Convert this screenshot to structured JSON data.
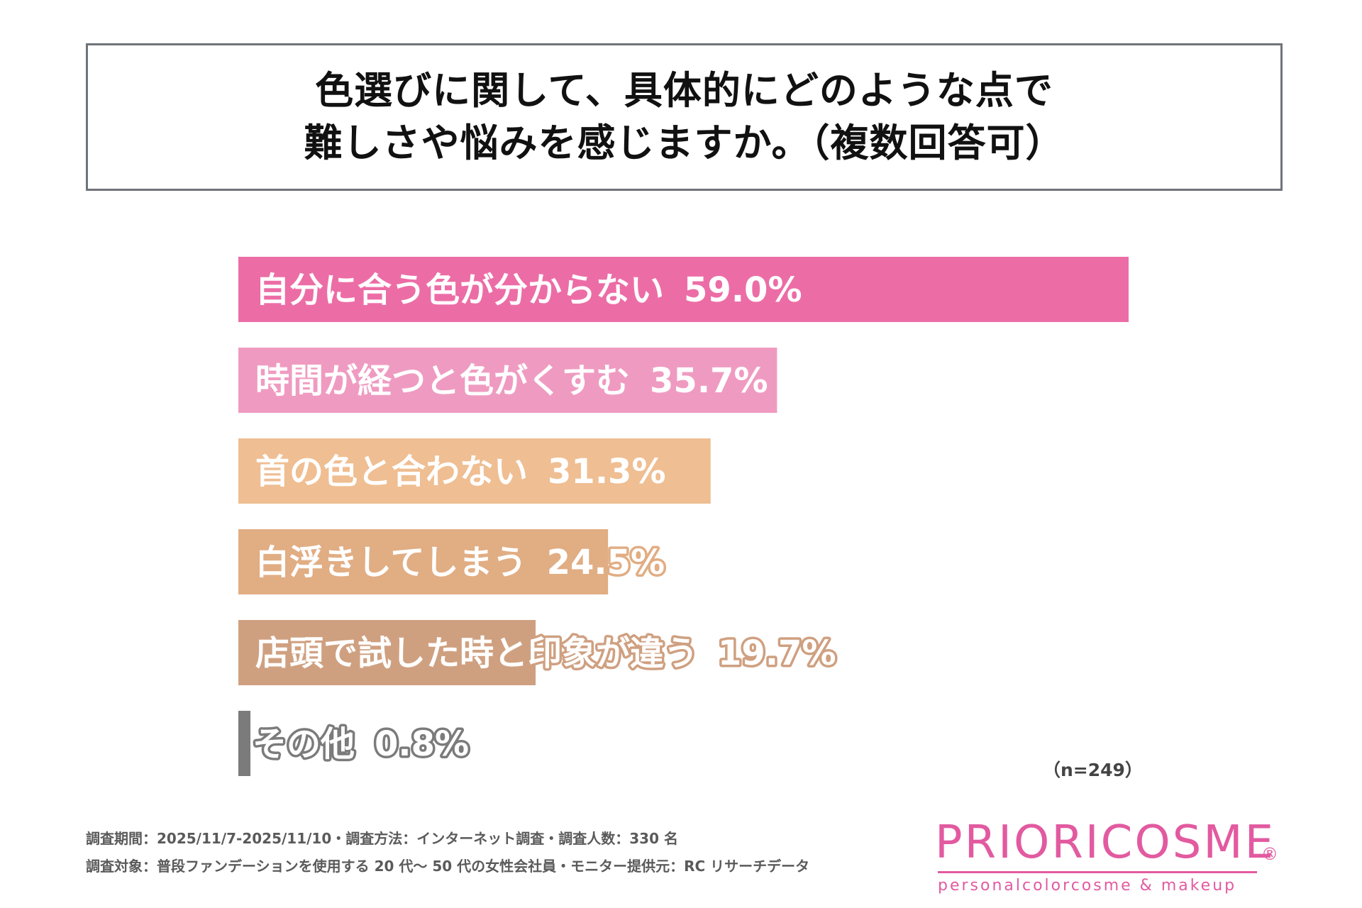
{
  "title": {
    "line1": "色選びに関して、具体的にどのような点で",
    "line2": "難しさや悩みを感じますか。（複数回答可）"
  },
  "chart_data": {
    "type": "bar",
    "orientation": "horizontal",
    "categories": [
      "自分に合う色が分からない",
      "時間が経つと色がくすむ",
      "首の色と合わない",
      "白浮きしてしまう",
      "店頭で試した時と印象が違う",
      "その他"
    ],
    "values": [
      59.0,
      35.7,
      31.3,
      24.5,
      19.7,
      0.8
    ],
    "value_labels": [
      "59.0%",
      "35.7%",
      "31.3%",
      "24.5%",
      "19.7%",
      "0.8%"
    ],
    "unit": "%",
    "colors": [
      "#ec6da6",
      "#ef9bc1",
      "#efbe92",
      "#e1ad83",
      "#cfa080",
      "#7b7b7b"
    ],
    "sample_size": "（n=249）",
    "grid": false,
    "legend": "none"
  },
  "footer": {
    "line1": "調査期間：2025/11/7-2025/11/10・調査方法：インターネット調査・調査人数：330 名",
    "line2": "調査対象：普段ファンデーションを使用する 20 代〜 50 代の女性会社員・モニター提供元：RC リサーチデータ"
  },
  "brand": {
    "name": "PRIORICOSME",
    "registered": "®",
    "tagline": "personalcolorcosme & makeup",
    "color": "#e25aa0"
  }
}
